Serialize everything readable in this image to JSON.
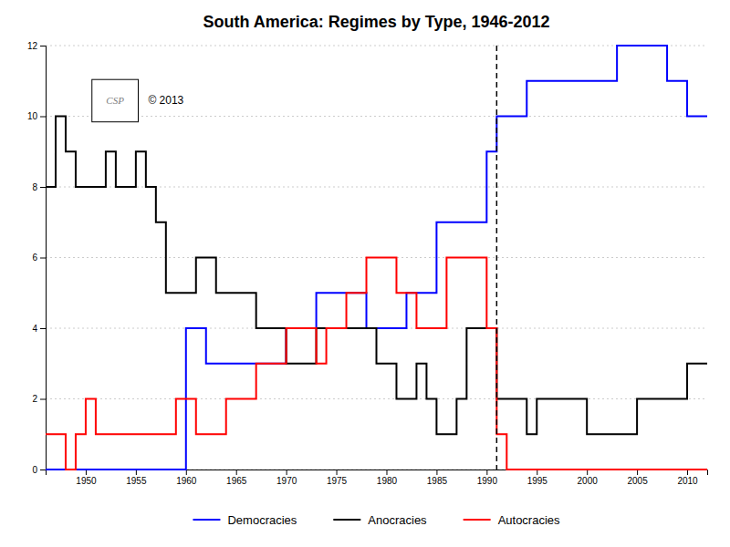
{
  "chart_data": {
    "type": "step",
    "title": "South America: Regimes by Type, 1946-2012",
    "x": [
      1946,
      1947,
      1948,
      1949,
      1950,
      1951,
      1952,
      1953,
      1954,
      1955,
      1956,
      1957,
      1958,
      1959,
      1960,
      1961,
      1962,
      1963,
      1964,
      1965,
      1966,
      1967,
      1968,
      1969,
      1970,
      1971,
      1972,
      1973,
      1974,
      1975,
      1976,
      1977,
      1978,
      1979,
      1980,
      1981,
      1982,
      1983,
      1984,
      1985,
      1986,
      1987,
      1988,
      1989,
      1990,
      1991,
      1992,
      1993,
      1994,
      1995,
      1996,
      1997,
      1998,
      1999,
      2000,
      2001,
      2002,
      2003,
      2004,
      2005,
      2006,
      2007,
      2008,
      2009,
      2010,
      2011,
      2012
    ],
    "series": [
      {
        "name": "Democracies",
        "color": "#0000FF",
        "values": [
          0,
          0,
          0,
          0,
          0,
          0,
          0,
          0,
          0,
          0,
          0,
          0,
          0,
          0,
          4,
          4,
          3,
          3,
          3,
          3,
          3,
          3,
          3,
          3,
          4,
          4,
          4,
          5,
          5,
          5,
          5,
          5,
          4,
          4,
          4,
          4,
          5,
          5,
          5,
          7,
          7,
          7,
          7,
          7,
          9,
          10,
          10,
          10,
          11,
          11,
          11,
          11,
          11,
          11,
          11,
          11,
          11,
          12,
          12,
          12,
          12,
          12,
          11,
          11,
          10,
          10,
          10
        ]
      },
      {
        "name": "Anocracies",
        "color": "#000000",
        "values": [
          8,
          10,
          9,
          8,
          8,
          8,
          9,
          8,
          8,
          9,
          8,
          7,
          5,
          5,
          5,
          6,
          6,
          5,
          5,
          5,
          5,
          4,
          4,
          4,
          3,
          3,
          3,
          4,
          4,
          4,
          4,
          4,
          4,
          3,
          3,
          2,
          2,
          3,
          2,
          1,
          1,
          2,
          4,
          4,
          4,
          2,
          2,
          2,
          1,
          2,
          2,
          2,
          2,
          2,
          1,
          1,
          1,
          1,
          1,
          2,
          2,
          2,
          2,
          2,
          3,
          3,
          3
        ]
      },
      {
        "name": "Autocracies",
        "color": "#FF0000",
        "values": [
          1,
          1,
          0,
          1,
          2,
          1,
          1,
          1,
          1,
          1,
          1,
          1,
          1,
          2,
          2,
          1,
          1,
          1,
          2,
          2,
          2,
          3,
          3,
          3,
          4,
          4,
          4,
          3,
          4,
          4,
          5,
          5,
          6,
          6,
          6,
          5,
          5,
          4,
          4,
          4,
          6,
          6,
          6,
          6,
          4,
          1,
          0,
          0,
          0,
          0,
          0,
          0,
          0,
          0,
          0,
          0,
          0,
          0,
          0,
          0,
          0,
          0,
          0,
          0,
          0,
          0,
          0
        ]
      }
    ],
    "xlim": [
      1946,
      2012
    ],
    "xticks": [
      1950,
      1955,
      1960,
      1965,
      1970,
      1975,
      1980,
      1985,
      1990,
      1995,
      2000,
      2005,
      2010
    ],
    "ylim": [
      0,
      12
    ],
    "yticks": [
      0,
      2,
      4,
      6,
      8,
      10,
      12
    ],
    "vlines": [
      1991
    ],
    "annotations": [
      "CSP",
      "© 2013"
    ],
    "grid": true,
    "legend": "bottom"
  }
}
